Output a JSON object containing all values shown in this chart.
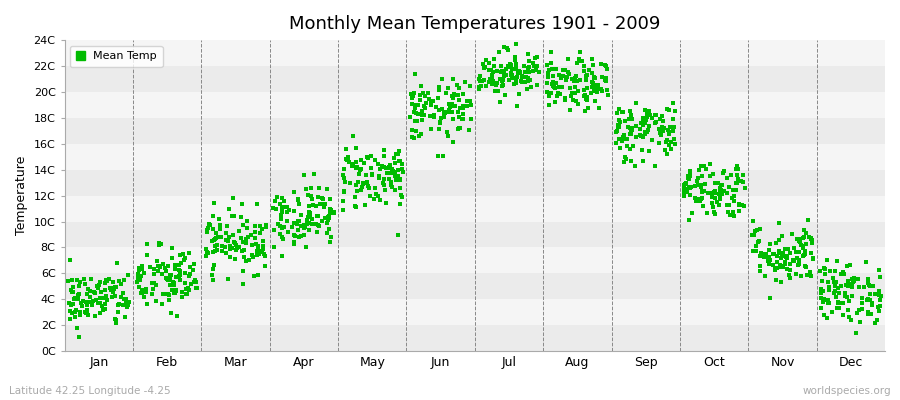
{
  "title": "Monthly Mean Temperatures 1901 - 2009",
  "ylabel": "Temperature",
  "ytick_labels": [
    "0C",
    "2C",
    "4C",
    "6C",
    "8C",
    "10C",
    "12C",
    "14C",
    "16C",
    "18C",
    "20C",
    "22C",
    "24C"
  ],
  "ytick_values": [
    0,
    2,
    4,
    6,
    8,
    10,
    12,
    14,
    16,
    18,
    20,
    22,
    24
  ],
  "ylim": [
    0,
    24
  ],
  "month_labels": [
    "Jan",
    "Feb",
    "Mar",
    "Apr",
    "May",
    "Jun",
    "Jul",
    "Aug",
    "Sep",
    "Oct",
    "Nov",
    "Dec"
  ],
  "legend_label": "Mean Temp",
  "marker_color": "#00bb00",
  "marker_size": 4,
  "bottom_left_text": "Latitude 42.25 Longitude -4.25",
  "bottom_right_text": "worldspecies.org",
  "band_colors": [
    "#ebebeb",
    "#f5f5f5"
  ],
  "monthly_means": [
    4.0,
    5.5,
    8.5,
    10.5,
    13.5,
    18.5,
    21.5,
    20.5,
    17.0,
    12.5,
    7.5,
    4.5
  ],
  "monthly_stds": [
    1.1,
    1.3,
    1.2,
    1.2,
    1.3,
    1.2,
    0.9,
    1.0,
    1.2,
    1.1,
    1.2,
    1.2
  ],
  "n_years": 109
}
